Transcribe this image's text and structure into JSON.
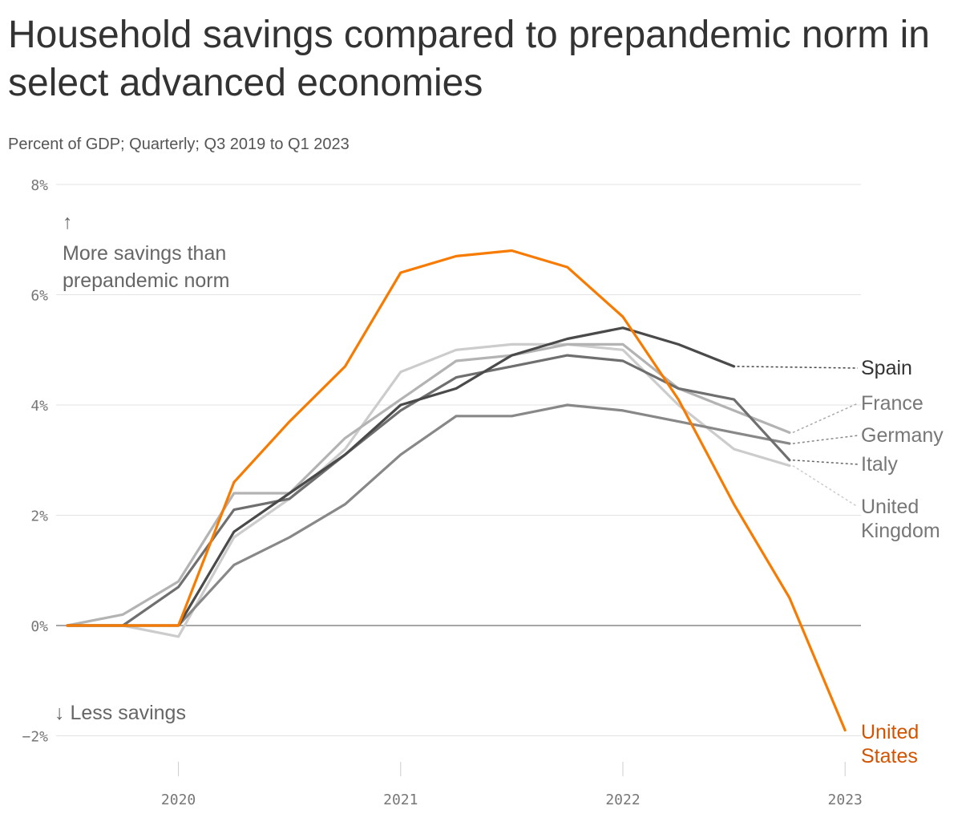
{
  "header": {
    "title": "Household savings compared to prepandemic norm in select advanced economies",
    "subtitle": "Percent of GDP; Quarterly; Q3 2019 to Q1 2023"
  },
  "annotations": {
    "up_arrow": "↑",
    "more_line1": "More savings than",
    "more_line2": "prepandemic norm",
    "less": "↓ Less savings"
  },
  "chart_data": {
    "type": "line",
    "title": "Household savings compared to prepandemic norm in select advanced economies",
    "subtitle": "Percent of GDP; Quarterly; Q3 2019 to Q1 2023",
    "xlabel": "",
    "ylabel": "",
    "x": [
      "Q3 2019",
      "Q4 2019",
      "Q1 2020",
      "Q2 2020",
      "Q3 2020",
      "Q4 2020",
      "Q1 2021",
      "Q2 2021",
      "Q3 2021",
      "Q4 2021",
      "Q1 2022",
      "Q2 2022",
      "Q3 2022",
      "Q4 2022",
      "Q1 2023"
    ],
    "x_ticks": [
      "2020",
      "2021",
      "2022",
      "2023"
    ],
    "y_ticks": [
      "8%",
      "6%",
      "4%",
      "2%",
      "0%",
      "−2%"
    ],
    "ylim": [
      -2,
      8
    ],
    "grid": true,
    "legend": "direct labels at line ends (right)",
    "series": [
      {
        "name": "United Kingdom",
        "label_lines": [
          "United",
          "Kingdom"
        ],
        "color": "#cccccc",
        "label_color": "#777777",
        "values": [
          0,
          0,
          -0.2,
          1.6,
          2.3,
          3.2,
          4.6,
          5.0,
          5.1,
          5.1,
          5.0,
          4.0,
          3.2,
          2.9,
          null
        ]
      },
      {
        "name": "France",
        "label_lines": [
          "France"
        ],
        "color": "#b3b3b3",
        "label_color": "#777777",
        "values": [
          0,
          0.2,
          0.8,
          2.4,
          2.4,
          3.4,
          4.1,
          4.8,
          4.9,
          5.1,
          5.1,
          4.3,
          3.9,
          3.5,
          null
        ]
      },
      {
        "name": "Germany",
        "label_lines": [
          "Germany"
        ],
        "color": "#888888",
        "label_color": "#777777",
        "values": [
          0,
          0,
          0,
          1.1,
          1.6,
          2.2,
          3.1,
          3.8,
          3.8,
          4.0,
          3.9,
          3.7,
          3.5,
          3.3,
          null
        ]
      },
      {
        "name": "Italy",
        "label_lines": [
          "Italy"
        ],
        "color": "#6f6f6f",
        "label_color": "#777777",
        "values": [
          0,
          0,
          0.7,
          2.1,
          2.3,
          3.1,
          3.9,
          4.5,
          4.7,
          4.9,
          4.8,
          4.3,
          4.1,
          3.0,
          null
        ]
      },
      {
        "name": "Spain",
        "label_lines": [
          "Spain"
        ],
        "color": "#4a4a4a",
        "label_color": "#333333",
        "values": [
          0,
          0,
          0,
          1.7,
          2.4,
          3.1,
          4.0,
          4.3,
          4.9,
          5.2,
          5.4,
          5.1,
          4.7,
          null,
          null
        ]
      },
      {
        "name": "United States",
        "label_lines": [
          "United",
          "States"
        ],
        "color": "#f77b00",
        "label_color": "#d35400",
        "values": [
          0,
          0,
          0,
          2.6,
          3.7,
          4.7,
          6.4,
          6.7,
          6.8,
          6.5,
          5.6,
          4.1,
          2.2,
          0.5,
          -1.9
        ]
      }
    ]
  }
}
